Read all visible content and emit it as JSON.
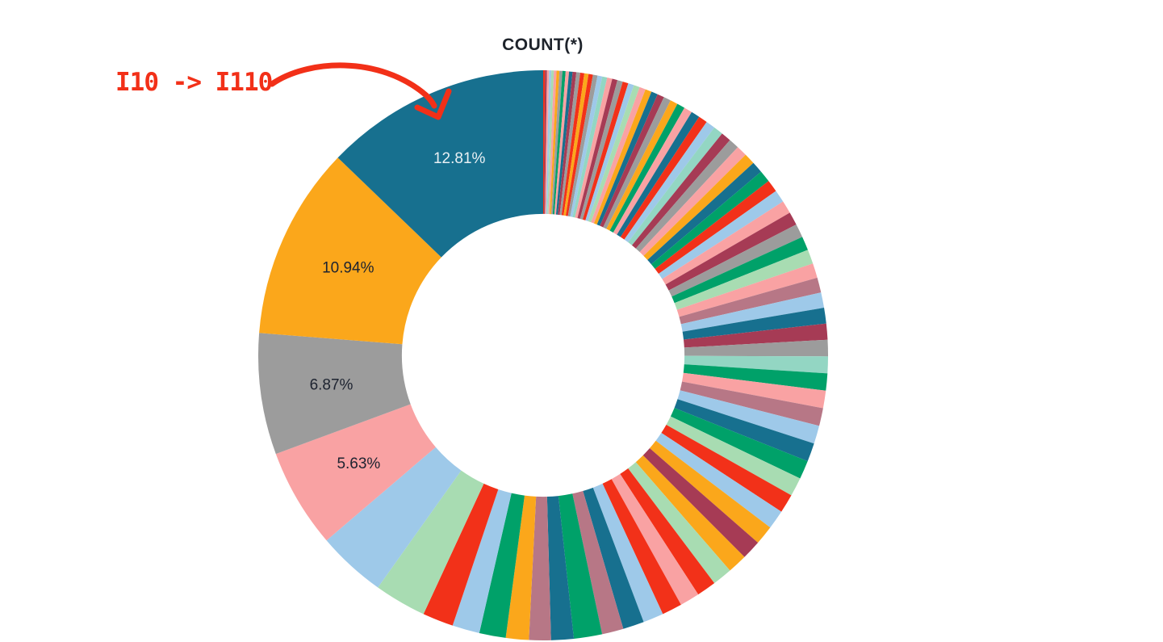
{
  "title": "COUNT(*)",
  "annotation": {
    "text": "I10 -> I110",
    "color": "#F23018"
  },
  "chart_data": {
    "type": "pie",
    "title": "COUNT(*)",
    "donut": true,
    "inner_radius_ratio": 0.496,
    "start_angle": "12 o'clock",
    "direction": "clockwise, slices ascending in size",
    "legend": "none",
    "label_colors": {
      "dark": "#1d2330",
      "light": "#e9f0f4"
    },
    "palette": {
      "teal": "#17708F",
      "orange": "#FBA71B",
      "gray": "#9C9C9C",
      "pink": "#F9A2A3",
      "lightblue": "#9EC9E9",
      "lightgreen": "#A8DCB2",
      "red": "#F23119",
      "green": "#00A169",
      "maroon": "#A63B55",
      "mauve": "#B77786",
      "mint": "#93D6C3"
    },
    "labeled_slices": [
      {
        "label": "12.81%",
        "value": 12.81,
        "color": "teal"
      },
      {
        "label": "10.94%",
        "value": 10.94,
        "color": "orange"
      },
      {
        "label": "6.87%",
        "value": 6.87,
        "color": "gray"
      },
      {
        "label": "5.63%",
        "value": 5.63,
        "color": "pink"
      }
    ],
    "slices": [
      {
        "value": 0.1,
        "color": "red"
      },
      {
        "value": 0.11,
        "color": "maroon"
      },
      {
        "value": 0.12,
        "color": "pink"
      },
      {
        "value": 0.13,
        "color": "lightblue"
      },
      {
        "value": 0.14,
        "color": "lightgreen"
      },
      {
        "value": 0.15,
        "color": "pink"
      },
      {
        "value": 0.16,
        "color": "orange"
      },
      {
        "value": 0.17,
        "color": "gray"
      },
      {
        "value": 0.18,
        "color": "green"
      },
      {
        "value": 0.19,
        "color": "pink"
      },
      {
        "value": 0.2,
        "color": "teal"
      },
      {
        "value": 0.21,
        "color": "maroon"
      },
      {
        "value": 0.22,
        "color": "gray"
      },
      {
        "value": 0.23,
        "color": "red"
      },
      {
        "value": 0.24,
        "color": "orange"
      },
      {
        "value": 0.25,
        "color": "red"
      },
      {
        "value": 0.26,
        "color": "gray"
      },
      {
        "value": 0.27,
        "color": "lightblue"
      },
      {
        "value": 0.28,
        "color": "mint"
      },
      {
        "value": 0.29,
        "color": "pink"
      },
      {
        "value": 0.3,
        "color": "maroon"
      },
      {
        "value": 0.31,
        "color": "gray"
      },
      {
        "value": 0.32,
        "color": "red"
      },
      {
        "value": 0.33,
        "color": "lightblue"
      },
      {
        "value": 0.34,
        "color": "lightgreen"
      },
      {
        "value": 0.35,
        "color": "pink"
      },
      {
        "value": 0.36,
        "color": "orange"
      },
      {
        "value": 0.37,
        "color": "teal"
      },
      {
        "value": 0.39,
        "color": "maroon"
      },
      {
        "value": 0.41,
        "color": "gray"
      },
      {
        "value": 0.43,
        "color": "orange"
      },
      {
        "value": 0.45,
        "color": "green"
      },
      {
        "value": 0.47,
        "color": "pink"
      },
      {
        "value": 0.49,
        "color": "teal"
      },
      {
        "value": 0.51,
        "color": "red"
      },
      {
        "value": 0.53,
        "color": "lightblue"
      },
      {
        "value": 0.55,
        "color": "mint"
      },
      {
        "value": 0.57,
        "color": "maroon"
      },
      {
        "value": 0.59,
        "color": "gray"
      },
      {
        "value": 0.61,
        "color": "pink"
      },
      {
        "value": 0.63,
        "color": "orange"
      },
      {
        "value": 0.65,
        "color": "teal"
      },
      {
        "value": 0.67,
        "color": "green"
      },
      {
        "value": 0.69,
        "color": "red"
      },
      {
        "value": 0.71,
        "color": "lightblue"
      },
      {
        "value": 0.73,
        "color": "pink"
      },
      {
        "value": 0.75,
        "color": "maroon"
      },
      {
        "value": 0.77,
        "color": "gray"
      },
      {
        "value": 0.79,
        "color": "green"
      },
      {
        "value": 0.81,
        "color": "lightgreen"
      },
      {
        "value": 0.83,
        "color": "pink"
      },
      {
        "value": 0.85,
        "color": "mauve"
      },
      {
        "value": 0.87,
        "color": "lightblue"
      },
      {
        "value": 0.89,
        "color": "teal"
      },
      {
        "value": 0.91,
        "color": "maroon"
      },
      {
        "value": 0.93,
        "color": "gray"
      },
      {
        "value": 0.95,
        "color": "mint"
      },
      {
        "value": 0.97,
        "color": "green"
      },
      {
        "value": 0.99,
        "color": "pink"
      },
      {
        "value": 1.01,
        "color": "mauve"
      },
      {
        "value": 1.03,
        "color": "lightblue"
      },
      {
        "value": 1.05,
        "color": "teal"
      },
      {
        "value": 1.05,
        "color": "green"
      },
      {
        "value": 1.06,
        "color": "lightgreen"
      },
      {
        "value": 1.07,
        "color": "red"
      },
      {
        "value": 1.08,
        "color": "lightblue"
      },
      {
        "value": 1.09,
        "color": "orange"
      },
      {
        "value": 1.1,
        "color": "maroon"
      },
      {
        "value": 1.11,
        "color": "orange"
      },
      {
        "value": 1.12,
        "color": "lightgreen"
      },
      {
        "value": 1.1,
        "color": "red"
      },
      {
        "value": 1.12,
        "color": "pink"
      },
      {
        "value": 1.14,
        "color": "red"
      },
      {
        "value": 1.16,
        "color": "lightblue"
      },
      {
        "value": 1.2,
        "color": "teal"
      },
      {
        "value": 1.22,
        "color": "mauve"
      },
      {
        "value": 1.6,
        "color": "green"
      },
      {
        "value": 1.28,
        "color": "teal"
      },
      {
        "value": 1.24,
        "color": "mauve"
      },
      {
        "value": 1.3,
        "color": "orange"
      },
      {
        "value": 1.5,
        "color": "green"
      },
      {
        "value": 1.55,
        "color": "lightblue"
      },
      {
        "value": 1.75,
        "color": "red"
      },
      {
        "value": 2.95,
        "color": "lightgreen"
      },
      {
        "value": 3.9,
        "color": "lightblue"
      },
      {
        "value": 5.63,
        "color": "pink",
        "label": "5.63%",
        "label_color": "dark"
      },
      {
        "value": 6.87,
        "color": "gray",
        "label": "6.87%",
        "label_color": "dark"
      },
      {
        "value": 10.94,
        "color": "orange",
        "label": "10.94%",
        "label_color": "dark"
      },
      {
        "value": 12.81,
        "color": "teal",
        "label": "12.81%",
        "label_color": "light"
      }
    ]
  }
}
